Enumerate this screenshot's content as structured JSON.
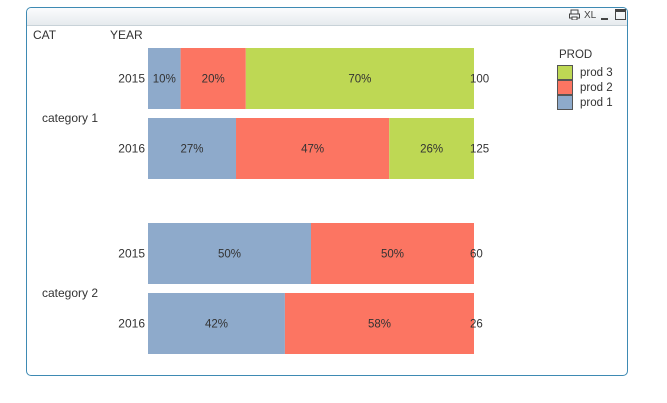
{
  "window": {
    "toolbar_xl": "XL"
  },
  "headers": {
    "cat": "CAT",
    "year": "YEAR"
  },
  "colors": {
    "prod 1": "#8eaacb",
    "prod 2": "#fc7562",
    "prod 3": "#bed854",
    "frame_border": "#3e8ab3"
  },
  "chart_data": {
    "type": "bar",
    "orientation": "horizontal",
    "stacked": "percent",
    "legend": {
      "title": "PROD",
      "position": "right",
      "entries": [
        "prod 3",
        "prod 2",
        "prod 1"
      ]
    },
    "groups": [
      {
        "category": "category 1",
        "rows": [
          {
            "year": "2015",
            "total": "100",
            "segments": [
              {
                "series": "prod 1",
                "pct": 10,
                "label": "10%"
              },
              {
                "series": "prod 2",
                "pct": 20,
                "label": "20%"
              },
              {
                "series": "prod 3",
                "pct": 70,
                "label": "70%"
              }
            ]
          },
          {
            "year": "2016",
            "total": "125",
            "segments": [
              {
                "series": "prod 1",
                "pct": 27,
                "label": "27%"
              },
              {
                "series": "prod 2",
                "pct": 47,
                "label": "47%"
              },
              {
                "series": "prod 3",
                "pct": 26,
                "label": "26%"
              }
            ]
          }
        ]
      },
      {
        "category": "category 2",
        "rows": [
          {
            "year": "2015",
            "total": "60",
            "segments": [
              {
                "series": "prod 1",
                "pct": 50,
                "label": "50%"
              },
              {
                "series": "prod 2",
                "pct": 50,
                "label": "50%"
              }
            ]
          },
          {
            "year": "2016",
            "total": "26",
            "segments": [
              {
                "series": "prod 1",
                "pct": 42,
                "label": "42%"
              },
              {
                "series": "prod 2",
                "pct": 58,
                "label": "58%"
              }
            ]
          }
        ]
      }
    ]
  }
}
